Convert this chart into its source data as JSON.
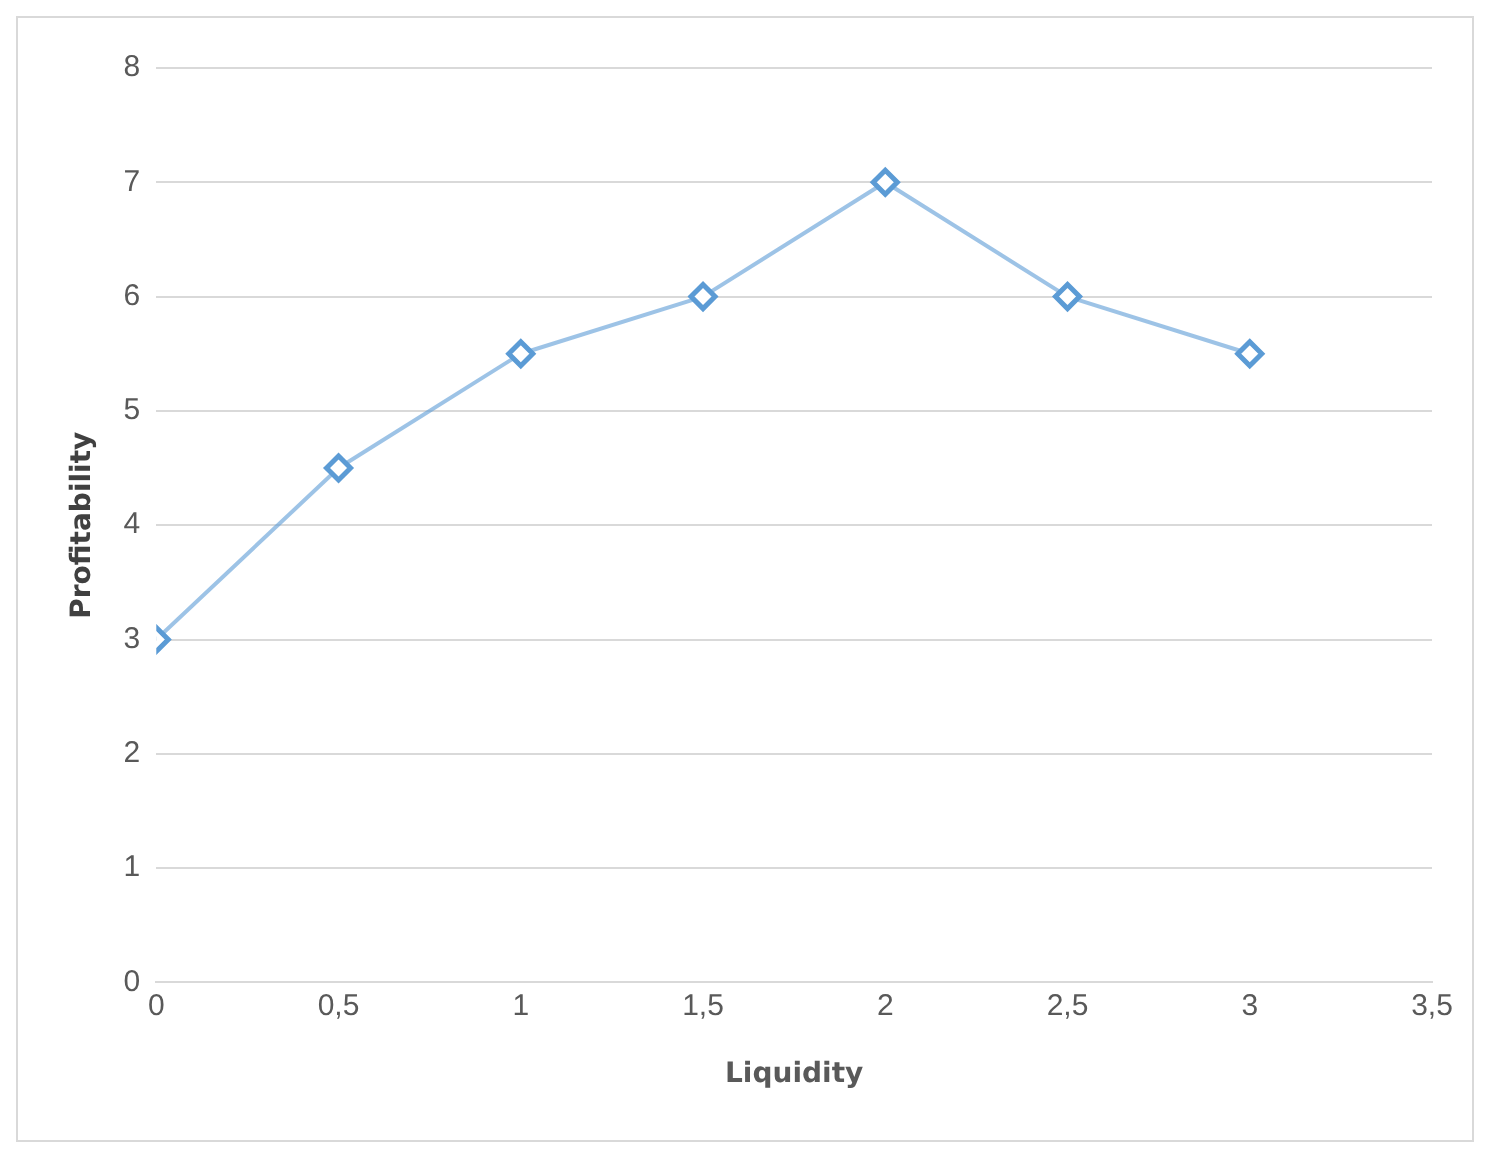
{
  "chart_data": {
    "type": "line",
    "xlabel": "Liquidity",
    "ylabel": "Profitability",
    "x": [
      0,
      0.5,
      1,
      1.5,
      2,
      2.5,
      3
    ],
    "series": [
      {
        "color": "#5b9bd5",
        "values": [
          3,
          4.5,
          5.5,
          6,
          7,
          6,
          5.5
        ]
      }
    ],
    "xlim": [
      0,
      3.5
    ],
    "xticks": [
      0,
      {
        "value": 0.5,
        "label": "0,5"
      },
      1,
      {
        "value": 1.5,
        "label": "1,5"
      },
      2,
      {
        "value": 2.5,
        "label": "2,5"
      },
      3,
      {
        "value": 3.5,
        "label": "3,5"
      }
    ],
    "ylim": [
      0,
      8
    ],
    "yticks": [
      0,
      1,
      2,
      3,
      4,
      5,
      6,
      7,
      8
    ],
    "grid": "y",
    "legend": false,
    "marker": "diamond",
    "line_style": "solid"
  }
}
